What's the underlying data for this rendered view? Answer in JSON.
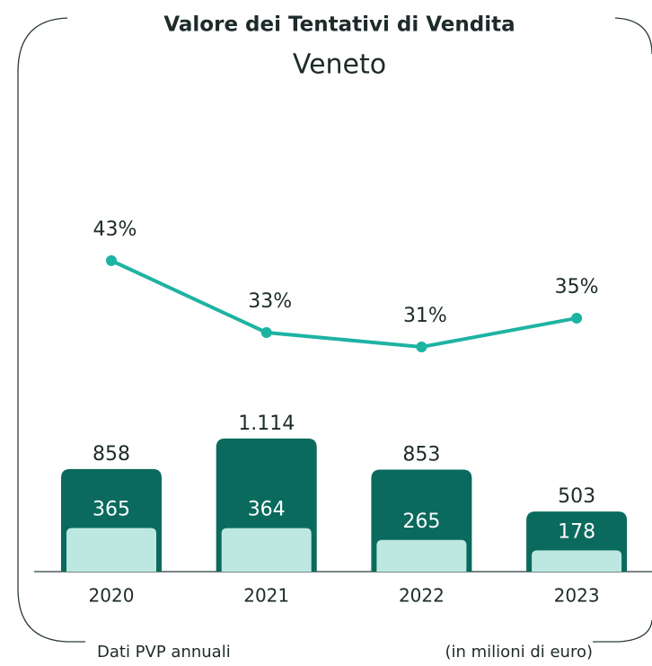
{
  "chart_data": {
    "type": "bar-line",
    "title": "Valore dei Tentativi di Vendita",
    "subtitle": "Veneto",
    "categories": [
      "2020",
      "2021",
      "2022",
      "2023"
    ],
    "series": [
      {
        "type": "bar",
        "color": "#0b6a5e",
        "values": [
          858,
          1114,
          853,
          503
        ],
        "value_labels": [
          "858",
          "1.114",
          "853",
          "503"
        ]
      },
      {
        "type": "bar",
        "color": "#bde8e2",
        "values": [
          365,
          364,
          265,
          178
        ]
      },
      {
        "type": "line",
        "color": "#1db3a3",
        "values": [
          43,
          33,
          31,
          35
        ],
        "value_labels": [
          "43%",
          "33%",
          "31%",
          "35%"
        ]
      }
    ],
    "notes": [
      "Dati PVP annuali",
      "(in milioni di euro)"
    ]
  }
}
